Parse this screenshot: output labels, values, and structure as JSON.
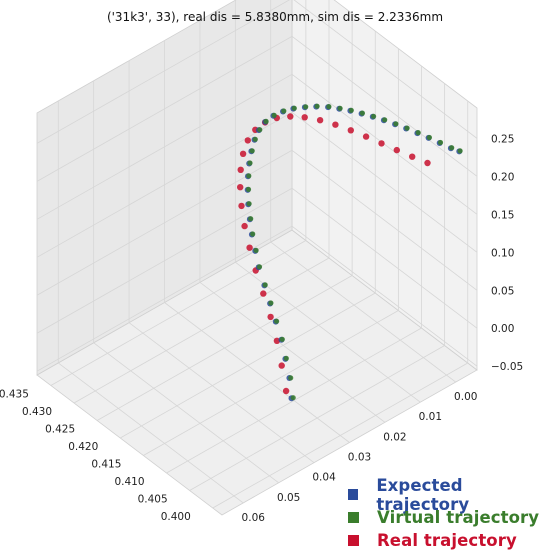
{
  "chart_data": {
    "type": "scatter",
    "projection": "3d",
    "title": "('31k3', 33), real dis = 5.8380mm, sim dis = 2.2336mm",
    "grid": true,
    "axes": {
      "x": {
        "ticks": [
          0.4,
          0.405,
          0.41,
          0.415,
          0.42,
          0.425,
          0.43,
          0.435
        ],
        "tick_labels": [
          "0.400",
          "0.405",
          "0.410",
          "0.415",
          "0.420",
          "0.425",
          "0.430",
          "0.435"
        ],
        "lim": [
          0.398,
          0.438
        ]
      },
      "y": {
        "ticks": [
          0.0,
          0.01,
          0.02,
          0.03,
          0.04,
          0.05,
          0.06
        ],
        "tick_labels": [
          "0.00",
          "0.01",
          "0.02",
          "0.03",
          "0.04",
          "0.05",
          "0.06"
        ],
        "lim": [
          -0.006,
          0.066
        ]
      },
      "z": {
        "ticks": [
          -0.05,
          0.0,
          0.05,
          0.1,
          0.15,
          0.2,
          0.25
        ],
        "tick_labels": [
          "−0.05",
          "0.00",
          "0.05",
          "0.10",
          "0.15",
          "0.20",
          "0.25"
        ],
        "lim": [
          -0.055,
          0.29
        ]
      }
    },
    "legend_placement": "bottom-right",
    "series": [
      {
        "name": "Expected trajectory",
        "color": "#2a4b9b",
        "marker": "square"
      },
      {
        "name": "Virtual trajectory",
        "color": "#3a7d2c",
        "marker": "square"
      },
      {
        "name": "Real trajectory",
        "color": "#c8102e",
        "marker": "square"
      }
    ],
    "trajectory_note": "Approximate 3D path (x, y, z in data units) for each series",
    "expected": [
      [
        0.409,
        0.032,
        -0.042
      ],
      [
        0.411,
        0.03,
        -0.03
      ],
      [
        0.413,
        0.0285,
        -0.018
      ],
      [
        0.415,
        0.027,
        -0.006
      ],
      [
        0.417,
        0.026,
        0.006
      ],
      [
        0.419,
        0.025,
        0.018
      ],
      [
        0.421,
        0.024,
        0.03
      ],
      [
        0.423,
        0.023,
        0.042
      ],
      [
        0.4245,
        0.022,
        0.054
      ],
      [
        0.426,
        0.021,
        0.066
      ],
      [
        0.4272,
        0.02,
        0.078
      ],
      [
        0.4283,
        0.019,
        0.09
      ],
      [
        0.4292,
        0.018,
        0.102
      ],
      [
        0.4299,
        0.017,
        0.114
      ],
      [
        0.4304,
        0.016,
        0.126
      ],
      [
        0.4307,
        0.015,
        0.138
      ],
      [
        0.4308,
        0.014,
        0.15
      ],
      [
        0.4306,
        0.013,
        0.161
      ],
      [
        0.43,
        0.012,
        0.172
      ],
      [
        0.429,
        0.011,
        0.182
      ],
      [
        0.4277,
        0.01,
        0.191
      ],
      [
        0.4262,
        0.009,
        0.199
      ],
      [
        0.4245,
        0.008,
        0.206
      ],
      [
        0.4228,
        0.007,
        0.212
      ],
      [
        0.421,
        0.006,
        0.217
      ],
      [
        0.4192,
        0.0052,
        0.221
      ],
      [
        0.4174,
        0.0044,
        0.2245
      ],
      [
        0.4156,
        0.0036,
        0.227
      ],
      [
        0.4138,
        0.0028,
        0.229
      ],
      [
        0.412,
        0.002,
        0.2305
      ],
      [
        0.4102,
        0.0012,
        0.2315
      ],
      [
        0.4084,
        0.0004,
        0.232
      ],
      [
        0.4066,
        -0.0004,
        0.2322
      ],
      [
        0.4048,
        -0.0012,
        0.232
      ],
      [
        0.403,
        -0.002,
        0.2315
      ],
      [
        0.4012,
        -0.0028,
        0.2308
      ],
      [
        0.4,
        -0.0036,
        0.23
      ]
    ],
    "virtual": [
      [
        0.4088,
        0.0318,
        -0.041
      ],
      [
        0.4108,
        0.0299,
        -0.0292
      ],
      [
        0.4129,
        0.0284,
        -0.0172
      ],
      [
        0.4149,
        0.0269,
        -0.0052
      ],
      [
        0.4169,
        0.0259,
        0.0068
      ],
      [
        0.4189,
        0.0249,
        0.0188
      ],
      [
        0.4209,
        0.0239,
        0.0308
      ],
      [
        0.4229,
        0.0229,
        0.0428
      ],
      [
        0.4244,
        0.0219,
        0.0548
      ],
      [
        0.4259,
        0.0209,
        0.0668
      ],
      [
        0.4271,
        0.0199,
        0.0788
      ],
      [
        0.4282,
        0.0189,
        0.0908
      ],
      [
        0.4291,
        0.0179,
        0.1028
      ],
      [
        0.4298,
        0.0169,
        0.1148
      ],
      [
        0.4303,
        0.0159,
        0.1268
      ],
      [
        0.4306,
        0.0149,
        0.1388
      ],
      [
        0.4307,
        0.0139,
        0.1508
      ],
      [
        0.4305,
        0.0129,
        0.1618
      ],
      [
        0.4299,
        0.0119,
        0.1728
      ],
      [
        0.4289,
        0.0109,
        0.1828
      ],
      [
        0.4276,
        0.0099,
        0.1918
      ],
      [
        0.4261,
        0.0089,
        0.1998
      ],
      [
        0.4244,
        0.0079,
        0.2068
      ],
      [
        0.4227,
        0.0069,
        0.2128
      ],
      [
        0.4209,
        0.0059,
        0.2178
      ],
      [
        0.4191,
        0.0051,
        0.2218
      ],
      [
        0.4173,
        0.0043,
        0.2253
      ],
      [
        0.4155,
        0.0035,
        0.2278
      ],
      [
        0.4137,
        0.0027,
        0.2298
      ],
      [
        0.4119,
        0.0019,
        0.2313
      ],
      [
        0.4101,
        0.0011,
        0.2323
      ],
      [
        0.4083,
        0.0003,
        0.2328
      ],
      [
        0.4065,
        -0.0005,
        0.233
      ],
      [
        0.4047,
        -0.0013,
        0.2328
      ],
      [
        0.4029,
        -0.0021,
        0.2323
      ],
      [
        0.4011,
        -0.0029,
        0.2316
      ],
      [
        0.3999,
        -0.0037,
        0.2308
      ]
    ],
    "real": [
      [
        0.4098,
        0.0325,
        -0.035
      ],
      [
        0.4125,
        0.0302,
        -0.02
      ],
      [
        0.415,
        0.0283,
        -0.004
      ],
      [
        0.4175,
        0.0268,
        0.012
      ],
      [
        0.42,
        0.0256,
        0.028
      ],
      [
        0.4225,
        0.0245,
        0.044
      ],
      [
        0.4248,
        0.0232,
        0.06
      ],
      [
        0.4268,
        0.022,
        0.076
      ],
      [
        0.4284,
        0.0208,
        0.092
      ],
      [
        0.4296,
        0.0196,
        0.108
      ],
      [
        0.4304,
        0.0184,
        0.124
      ],
      [
        0.4308,
        0.0172,
        0.14
      ],
      [
        0.4307,
        0.016,
        0.155
      ],
      [
        0.43,
        0.0148,
        0.169
      ],
      [
        0.4288,
        0.0136,
        0.181
      ],
      [
        0.4272,
        0.0124,
        0.191
      ],
      [
        0.4252,
        0.0112,
        0.199
      ],
      [
        0.423,
        0.01,
        0.205
      ],
      [
        0.4206,
        0.0088,
        0.209
      ],
      [
        0.4182,
        0.0076,
        0.211
      ],
      [
        0.4158,
        0.0064,
        0.2115
      ],
      [
        0.4134,
        0.0052,
        0.211
      ],
      [
        0.411,
        0.004,
        0.21
      ],
      [
        0.4086,
        0.0028,
        0.209
      ],
      [
        0.4062,
        0.0016,
        0.2082
      ],
      [
        0.4038,
        0.0004,
        0.2078
      ]
    ]
  }
}
